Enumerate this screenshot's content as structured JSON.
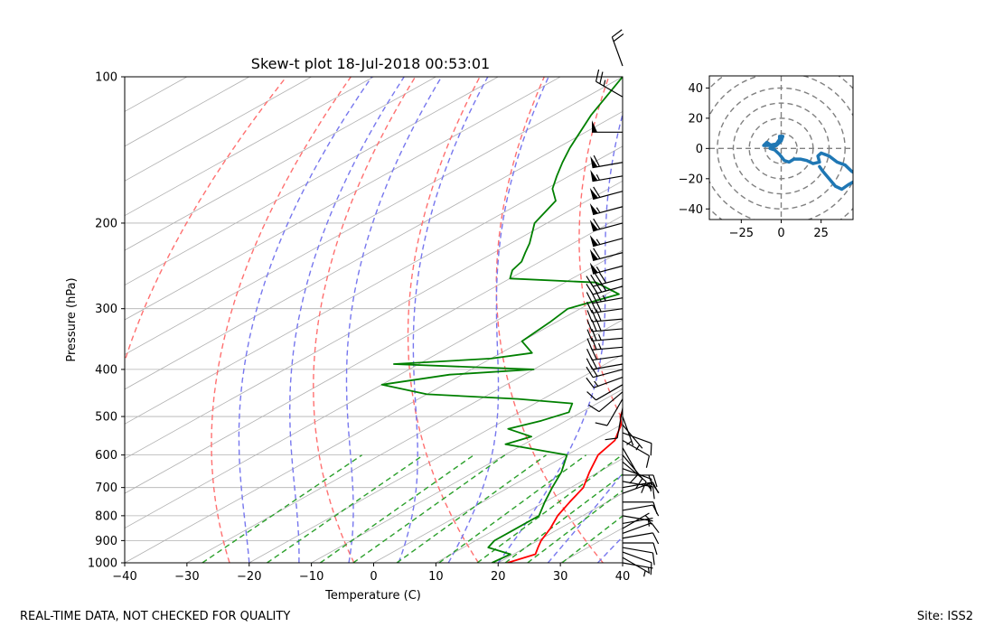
{
  "chart_data": [
    {
      "type": "skew-t",
      "title": "Skew-t plot 18-Jul-2018 00:53:01",
      "xlabel": "Temperature (C)",
      "ylabel": "Pressure (hPa)",
      "xlim": [
        -40,
        40
      ],
      "ylim": [
        1000,
        100
      ],
      "log_y": true,
      "skew_deg_per_decade": 140,
      "grid": true,
      "x_ticks": [
        -40,
        -30,
        -20,
        -10,
        0,
        10,
        20,
        30,
        40
      ],
      "x_tick_labels": [
        "−40",
        "−30",
        "−20",
        "−10",
        "0",
        "10",
        "20",
        "30",
        "40"
      ],
      "y_ticks": [
        1000,
        900,
        800,
        700,
        600,
        500,
        400,
        300,
        200,
        100
      ],
      "y_tick_labels": [
        "1000",
        "900",
        "800",
        "700",
        "600",
        "500",
        "400",
        "300",
        "200",
        "100"
      ],
      "colors": {
        "temperature": "#ff0000",
        "dewpoint": "#008000",
        "dry_adiabats": "#ff7070",
        "moist_adiabats": "#7777ee",
        "mixing_ratio": "#2ca02c",
        "isotherms": "#b0b0b0",
        "barbs": "#000000"
      },
      "series": [
        {
          "role": "temperature",
          "points": [
            {
              "p": 1000,
              "t": 21.5
            },
            {
              "p": 960,
              "t": 23.5
            },
            {
              "p": 930,
              "t": 22.0
            },
            {
              "p": 900,
              "t": 20.5
            },
            {
              "p": 850,
              "t": 18.5
            },
            {
              "p": 800,
              "t": 16.0
            },
            {
              "p": 750,
              "t": 14.0
            },
            {
              "p": 700,
              "t": 12.0
            },
            {
              "p": 650,
              "t": 8.5
            },
            {
              "p": 600,
              "t": 5.0
            },
            {
              "p": 560,
              "t": 3.5
            },
            {
              "p": 520,
              "t": 0.0
            },
            {
              "p": 500,
              "t": -2.5
            },
            {
              "p": 470,
              "t": -5.5
            },
            {
              "p": 450,
              "t": -7.0
            },
            {
              "p": 420,
              "t": -10.0
            },
            {
              "p": 400,
              "t": -12.5
            },
            {
              "p": 370,
              "t": -16.0
            },
            {
              "p": 350,
              "t": -19.0
            },
            {
              "p": 320,
              "t": -24.0
            },
            {
              "p": 300,
              "t": -28.5
            },
            {
              "p": 280,
              "t": -33.0
            },
            {
              "p": 260,
              "t": -38.5
            },
            {
              "p": 240,
              "t": -44.0
            },
            {
              "p": 220,
              "t": -50.5
            },
            {
              "p": 200,
              "t": -56.0
            },
            {
              "p": 180,
              "t": -61.0
            },
            {
              "p": 165,
              "t": -65.0
            },
            {
              "p": 150,
              "t": -67.0
            },
            {
              "p": 140,
              "t": -68.0
            },
            {
              "p": 130,
              "t": -66.5
            },
            {
              "p": 120,
              "t": -66.0
            },
            {
              "p": 110,
              "t": -67.0
            },
            {
              "p": 100,
              "t": -69.0
            }
          ]
        },
        {
          "role": "dewpoint",
          "points": [
            {
              "p": 1000,
              "t": 19.0
            },
            {
              "p": 960,
              "t": 19.5
            },
            {
              "p": 930,
              "t": 14.0
            },
            {
              "p": 900,
              "t": 13.0
            },
            {
              "p": 860,
              "t": 13.0
            },
            {
              "p": 800,
              "t": 13.0
            },
            {
              "p": 750,
              "t": 10.0
            },
            {
              "p": 700,
              "t": 7.0
            },
            {
              "p": 650,
              "t": 4.0
            },
            {
              "p": 600,
              "t": 0.0
            },
            {
              "p": 570,
              "t": -13.0
            },
            {
              "p": 550,
              "t": -11.0
            },
            {
              "p": 530,
              "t": -17.0
            },
            {
              "p": 510,
              "t": -14.0
            },
            {
              "p": 490,
              "t": -12.0
            },
            {
              "p": 470,
              "t": -14.0
            },
            {
              "p": 460,
              "t": -24.0
            },
            {
              "p": 450,
              "t": -40.0
            },
            {
              "p": 430,
              "t": -50.0
            },
            {
              "p": 410,
              "t": -42.0
            },
            {
              "p": 400,
              "t": -30.0
            },
            {
              "p": 390,
              "t": -54.0
            },
            {
              "p": 380,
              "t": -40.0
            },
            {
              "p": 370,
              "t": -35.0
            },
            {
              "p": 350,
              "t": -40.0
            },
            {
              "p": 320,
              "t": -41.0
            },
            {
              "p": 300,
              "t": -42.0
            },
            {
              "p": 280,
              "t": -38.0
            },
            {
              "p": 265,
              "t": -45.0
            },
            {
              "p": 260,
              "t": -60.0
            },
            {
              "p": 250,
              "t": -62.0
            },
            {
              "p": 240,
              "t": -63.0
            },
            {
              "p": 230,
              "t": -65.0
            },
            {
              "p": 220,
              "t": -67.0
            },
            {
              "p": 200,
              "t": -72.0
            },
            {
              "p": 180,
              "t": -75.0
            },
            {
              "p": 170,
              "t": -79.0
            },
            {
              "p": 160,
              "t": -82.0
            },
            {
              "p": 150,
              "t": -85.0
            },
            {
              "p": 140,
              "t": -88.0
            },
            {
              "p": 120,
              "t": -94.0
            },
            {
              "p": 100,
              "t": -100.0
            }
          ]
        }
      ],
      "wind_barbs": [
        {
          "p": 1000,
          "dir": 100,
          "spd": 3
        },
        {
          "p": 975,
          "dir": 120,
          "spd": 5
        },
        {
          "p": 950,
          "dir": 110,
          "spd": 8
        },
        {
          "p": 930,
          "dir": 100,
          "spd": 10
        },
        {
          "p": 910,
          "dir": 90,
          "spd": 12
        },
        {
          "p": 890,
          "dir": 80,
          "spd": 10
        },
        {
          "p": 870,
          "dir": 70,
          "spd": 8
        },
        {
          "p": 850,
          "dir": 60,
          "spd": 6
        },
        {
          "p": 830,
          "dir": 80,
          "spd": 5
        },
        {
          "p": 800,
          "dir": 100,
          "spd": 6
        },
        {
          "p": 780,
          "dir": 80,
          "spd": 8
        },
        {
          "p": 750,
          "dir": 90,
          "spd": 12
        },
        {
          "p": 720,
          "dir": 70,
          "spd": 15
        },
        {
          "p": 700,
          "dir": 80,
          "spd": 15
        },
        {
          "p": 680,
          "dir": 100,
          "spd": 12
        },
        {
          "p": 660,
          "dir": 90,
          "spd": 14
        },
        {
          "p": 640,
          "dir": 110,
          "spd": 10
        },
        {
          "p": 620,
          "dir": 130,
          "spd": 10
        },
        {
          "p": 600,
          "dir": 140,
          "spd": 10
        },
        {
          "p": 580,
          "dir": 150,
          "spd": 8
        },
        {
          "p": 560,
          "dir": 120,
          "spd": 10
        },
        {
          "p": 540,
          "dir": 110,
          "spd": 8
        },
        {
          "p": 520,
          "dir": 140,
          "spd": 6
        },
        {
          "p": 500,
          "dir": 160,
          "spd": 5
        },
        {
          "p": 480,
          "dir": 190,
          "spd": 8
        },
        {
          "p": 460,
          "dir": 210,
          "spd": 10
        },
        {
          "p": 445,
          "dir": 230,
          "spd": 12
        },
        {
          "p": 430,
          "dir": 240,
          "spd": 12
        },
        {
          "p": 415,
          "dir": 250,
          "spd": 15
        },
        {
          "p": 400,
          "dir": 255,
          "spd": 20
        },
        {
          "p": 390,
          "dir": 260,
          "spd": 20
        },
        {
          "p": 375,
          "dir": 262,
          "spd": 20
        },
        {
          "p": 360,
          "dir": 265,
          "spd": 25
        },
        {
          "p": 345,
          "dir": 265,
          "spd": 25
        },
        {
          "p": 330,
          "dir": 265,
          "spd": 30
        },
        {
          "p": 315,
          "dir": 265,
          "spd": 30
        },
        {
          "p": 300,
          "dir": 262,
          "spd": 30
        },
        {
          "p": 285,
          "dir": 260,
          "spd": 35
        },
        {
          "p": 270,
          "dir": 255,
          "spd": 40
        },
        {
          "p": 260,
          "dir": 255,
          "spd": 40
        },
        {
          "p": 245,
          "dir": 255,
          "spd": 55
        },
        {
          "p": 230,
          "dir": 255,
          "spd": 60
        },
        {
          "p": 215,
          "dir": 255,
          "spd": 55
        },
        {
          "p": 200,
          "dir": 255,
          "spd": 60
        },
        {
          "p": 185,
          "dir": 255,
          "spd": 55
        },
        {
          "p": 172,
          "dir": 255,
          "spd": 60
        },
        {
          "p": 160,
          "dir": 260,
          "spd": 55
        },
        {
          "p": 150,
          "dir": 260,
          "spd": 60
        },
        {
          "p": 130,
          "dir": 270,
          "spd": 50
        },
        {
          "p": 110,
          "dir": 300,
          "spd": 25
        },
        {
          "p": 95,
          "dir": 340,
          "spd": 20
        }
      ]
    },
    {
      "type": "hodograph",
      "xlim": [
        -45,
        45
      ],
      "ylim": [
        -47,
        48
      ],
      "x_ticks": [
        -25,
        0,
        25
      ],
      "x_tick_labels": [
        "−25",
        "0",
        "25"
      ],
      "y_ticks": [
        40,
        20,
        0,
        -20,
        -40
      ],
      "y_tick_labels": [
        "40",
        "20",
        "0",
        "−20",
        "−40"
      ],
      "rings": [
        10,
        20,
        30,
        40,
        50,
        60
      ],
      "line_color": "#1f77b4",
      "points": [
        {
          "u": -3,
          "v": 3
        },
        {
          "u": -8,
          "v": 2
        },
        {
          "u": -11,
          "v": 2
        },
        {
          "u": -9,
          "v": 4
        },
        {
          "u": -5,
          "v": 1
        },
        {
          "u": -3,
          "v": 3
        },
        {
          "u": -1,
          "v": 6
        },
        {
          "u": -1,
          "v": 8
        },
        {
          "u": 1,
          "v": 8
        },
        {
          "u": 0,
          "v": 5
        },
        {
          "u": -3,
          "v": 2
        },
        {
          "u": -7,
          "v": 0
        },
        {
          "u": -4,
          "v": -1
        },
        {
          "u": -1,
          "v": -4
        },
        {
          "u": 2,
          "v": -8
        },
        {
          "u": 5,
          "v": -9
        },
        {
          "u": 8,
          "v": -7
        },
        {
          "u": 12,
          "v": -7
        },
        {
          "u": 16,
          "v": -8
        },
        {
          "u": 20,
          "v": -10
        },
        {
          "u": 24,
          "v": -9
        },
        {
          "u": 23,
          "v": -5
        },
        {
          "u": 25,
          "v": -3
        },
        {
          "u": 30,
          "v": -5
        },
        {
          "u": 35,
          "v": -9
        },
        {
          "u": 40,
          "v": -11
        },
        {
          "u": 44,
          "v": -15
        },
        {
          "u": 47,
          "v": -17
        }
      ],
      "tail_points": [
        {
          "u": 47,
          "v": -21
        },
        {
          "u": 42,
          "v": -24
        },
        {
          "u": 38,
          "v": -27
        },
        {
          "u": 34,
          "v": -25
        },
        {
          "u": 30,
          "v": -20
        },
        {
          "u": 26,
          "v": -15
        },
        {
          "u": 24,
          "v": -12
        }
      ]
    }
  ],
  "footer": {
    "left": "REAL-TIME DATA, NOT CHECKED FOR QUALITY",
    "right": "Site: ISS2"
  }
}
